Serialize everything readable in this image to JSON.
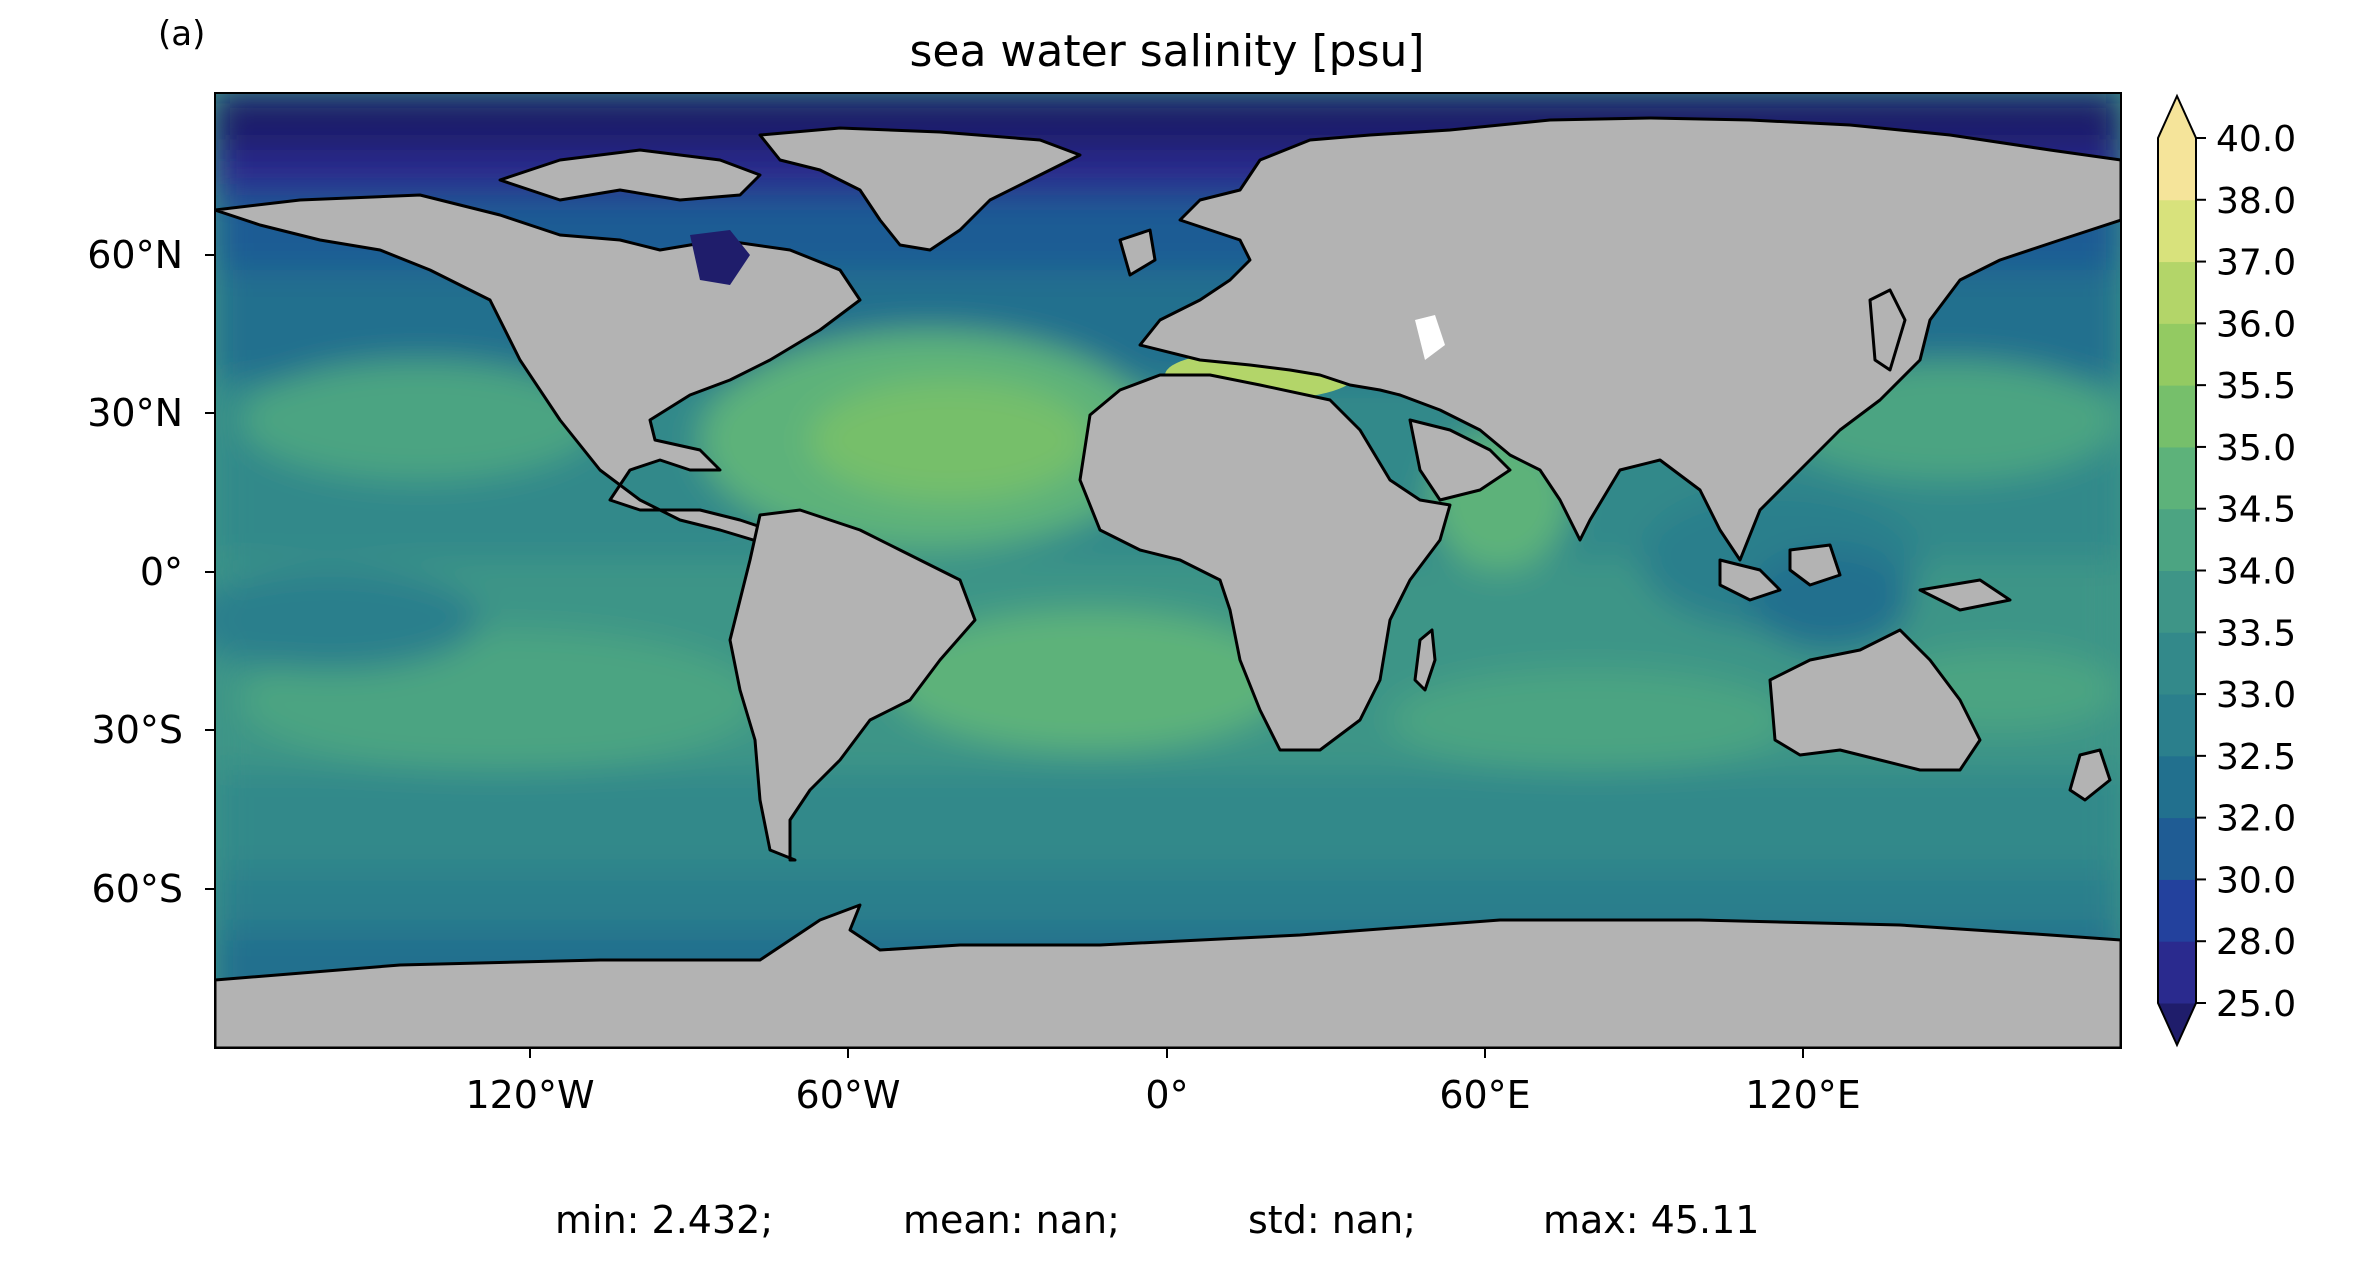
{
  "panel_label": "(a)",
  "title": "sea water salinity [psu]",
  "colorbar": {
    "levels": [
      "25.0",
      "28.0",
      "30.0",
      "32.0",
      "32.5",
      "33.0",
      "33.5",
      "34.0",
      "34.5",
      "35.0",
      "35.5",
      "36.0",
      "37.0",
      "38.0",
      "40.0"
    ],
    "colors": [
      "#1f1d6b",
      "#2a2a8e",
      "#23419d",
      "#1f5c94",
      "#22708e",
      "#2b7f8c",
      "#33898a",
      "#3e9587",
      "#4ca482",
      "#5db27a",
      "#76bf6b",
      "#93ca62",
      "#b3d569",
      "#d8e27c",
      "#f5e49a"
    ],
    "extend": "both"
  },
  "axes": {
    "x_ticks": [
      "120°W",
      "60°W",
      "0°",
      "60°E",
      "120°E"
    ],
    "y_ticks": [
      "60°N",
      "30°N",
      "0°",
      "30°S",
      "60°S"
    ]
  },
  "stats": {
    "min": "min: 2.432;",
    "mean": "mean: nan;",
    "std": "std: nan;",
    "max": "max: 45.11"
  },
  "map_colors": {
    "land": "#b3b3b3",
    "ocean_base": "#3e9587",
    "coast": "#000000",
    "ice": "#ffffff"
  }
}
